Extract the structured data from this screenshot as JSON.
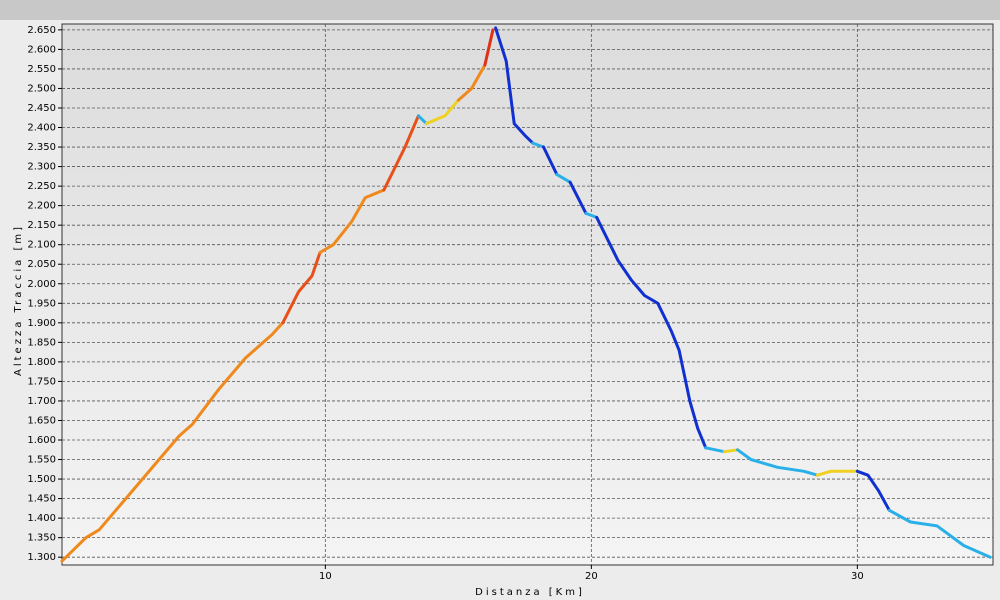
{
  "chart_data": {
    "type": "line",
    "x_label": "Distanza [Km]",
    "y_label": "Altezza Traccia [m]",
    "xlim": [
      0.1,
      35.1
    ],
    "ylim": [
      1280,
      2665
    ],
    "grid": true,
    "xticks": [
      10,
      20,
      30
    ],
    "yticks": [
      {
        "value": 1300,
        "label": "1.300"
      },
      {
        "value": 1350,
        "label": "1.350"
      },
      {
        "value": 1400,
        "label": "1.400"
      },
      {
        "value": 1450,
        "label": "1.450"
      },
      {
        "value": 1500,
        "label": "1.500"
      },
      {
        "value": 1550,
        "label": "1.550"
      },
      {
        "value": 1600,
        "label": "1.600"
      },
      {
        "value": 1650,
        "label": "1.650"
      },
      {
        "value": 1700,
        "label": "1.700"
      },
      {
        "value": 1750,
        "label": "1.750"
      },
      {
        "value": 1800,
        "label": "1.800"
      },
      {
        "value": 1850,
        "label": "1.850"
      },
      {
        "value": 1900,
        "label": "1.900"
      },
      {
        "value": 1950,
        "label": "1.950"
      },
      {
        "value": 2000,
        "label": "2.000"
      },
      {
        "value": 2050,
        "label": "2.050"
      },
      {
        "value": 2100,
        "label": "2.100"
      },
      {
        "value": 2150,
        "label": "2.150"
      },
      {
        "value": 2200,
        "label": "2.200"
      },
      {
        "value": 2250,
        "label": "2.250"
      },
      {
        "value": 2300,
        "label": "2.300"
      },
      {
        "value": 2350,
        "label": "2.350"
      },
      {
        "value": 2400,
        "label": "2.400"
      },
      {
        "value": 2450,
        "label": "2.450"
      },
      {
        "value": 2500,
        "label": "2.500"
      },
      {
        "value": 2550,
        "label": "2.550"
      },
      {
        "value": 2600,
        "label": "2.600"
      },
      {
        "value": 2650,
        "label": "2.650"
      }
    ],
    "series": [
      {
        "color": "#f0891c",
        "x": [
          0.1,
          1,
          1.5,
          3,
          4.5,
          5,
          6,
          7,
          8,
          8.4
        ],
        "values": [
          1290,
          1350,
          1370,
          1490,
          1610,
          1640,
          1730,
          1810,
          1870,
          1900
        ]
      },
      {
        "color": "#e8501a",
        "x": [
          8.4,
          9,
          9.5,
          9.8
        ],
        "values": [
          1900,
          1980,
          2020,
          2080
        ]
      },
      {
        "color": "#f0891c",
        "x": [
          9.8,
          10.3,
          11,
          11.5,
          12.2
        ],
        "values": [
          2080,
          2100,
          2160,
          2220,
          2240
        ]
      },
      {
        "color": "#e8501a",
        "x": [
          12.2,
          13,
          13.5
        ],
        "values": [
          2240,
          2350,
          2430
        ]
      },
      {
        "color": "#2ab0e8",
        "x": [
          13.5,
          13.8
        ],
        "values": [
          2430,
          2410
        ]
      },
      {
        "color": "#f0d020",
        "x": [
          13.8,
          14.5,
          15
        ],
        "values": [
          2410,
          2430,
          2470
        ]
      },
      {
        "color": "#f0891c",
        "x": [
          15,
          15.5,
          16
        ],
        "values": [
          2470,
          2500,
          2560
        ]
      },
      {
        "color": "#e03018",
        "x": [
          16,
          16.3
        ],
        "values": [
          2560,
          2650
        ]
      },
      {
        "color": "#1030d0",
        "x": [
          16.4,
          16.8,
          17.1,
          17.5,
          17.8
        ],
        "values": [
          2655,
          2570,
          2410,
          2380,
          2360
        ]
      },
      {
        "color": "#2ab0e8",
        "x": [
          17.8,
          18.2
        ],
        "values": [
          2360,
          2350
        ]
      },
      {
        "color": "#1030d0",
        "x": [
          18.2,
          18.7
        ],
        "values": [
          2350,
          2280
        ]
      },
      {
        "color": "#2ab0e8",
        "x": [
          18.7,
          19.2
        ],
        "values": [
          2280,
          2260
        ]
      },
      {
        "color": "#1030d0",
        "x": [
          19.2,
          19.8
        ],
        "values": [
          2260,
          2180
        ]
      },
      {
        "color": "#2ab0e8",
        "x": [
          19.8,
          20.2
        ],
        "values": [
          2180,
          2170
        ]
      },
      {
        "color": "#1030d0",
        "x": [
          20.2,
          21,
          21.5,
          22,
          22.5,
          23,
          23.3,
          23.7,
          24,
          24.3
        ],
        "values": [
          2170,
          2060,
          2010,
          1970,
          1950,
          1880,
          1830,
          1700,
          1630,
          1580
        ]
      },
      {
        "color": "#2ab0e8",
        "x": [
          24.3,
          25
        ],
        "values": [
          1580,
          1570
        ]
      },
      {
        "color": "#f0d020",
        "x": [
          25,
          25.5
        ],
        "values": [
          1570,
          1575
        ]
      },
      {
        "color": "#2ab0e8",
        "x": [
          25.5,
          26,
          27,
          28,
          28.5
        ],
        "values": [
          1575,
          1550,
          1530,
          1520,
          1510
        ]
      },
      {
        "color": "#f0d020",
        "x": [
          28.5,
          29,
          30
        ],
        "values": [
          1510,
          1520,
          1520
        ]
      },
      {
        "color": "#1030d0",
        "x": [
          30,
          30.4,
          30.8,
          31.2
        ],
        "values": [
          1520,
          1510,
          1470,
          1420
        ]
      },
      {
        "color": "#2ab0e8",
        "x": [
          31.2,
          32,
          33,
          34,
          35
        ],
        "values": [
          1420,
          1390,
          1380,
          1330,
          1300
        ]
      }
    ]
  }
}
